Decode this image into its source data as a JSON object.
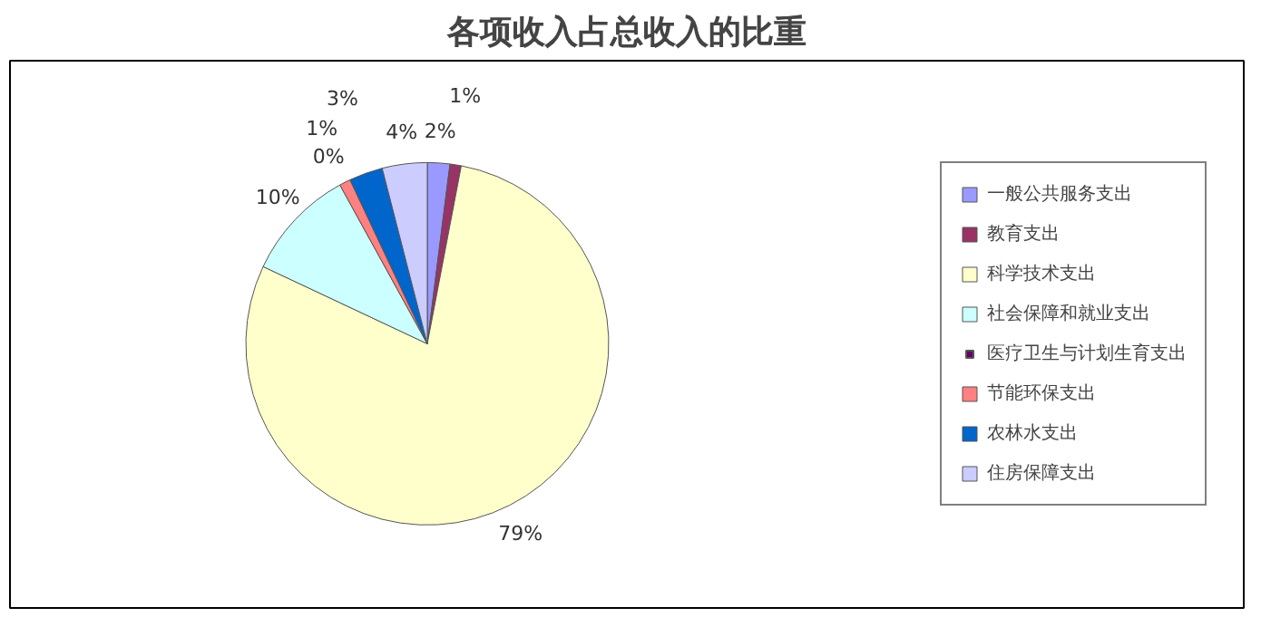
{
  "chart_data": {
    "type": "pie",
    "title": "各项收入占总收入的比重",
    "categories": [
      "一般公共服务支出",
      "教育支出",
      "科学技术支出",
      "社会保障和就业支出",
      "医疗卫生与计划生育支出",
      "节能环保支出",
      "农林水支出",
      "住房保障支出"
    ],
    "values": [
      2,
      1,
      79,
      10,
      0,
      1,
      3,
      4
    ],
    "colors": [
      "#9999ff",
      "#993366",
      "#ffffcc",
      "#ccffff",
      "#660066",
      "#ff8080",
      "#0066cc",
      "#ccccff"
    ],
    "value_labels": [
      "2%",
      "1%",
      "79%",
      "10%",
      "0%",
      "1%",
      "3%",
      "4%"
    ],
    "legend": "right"
  }
}
